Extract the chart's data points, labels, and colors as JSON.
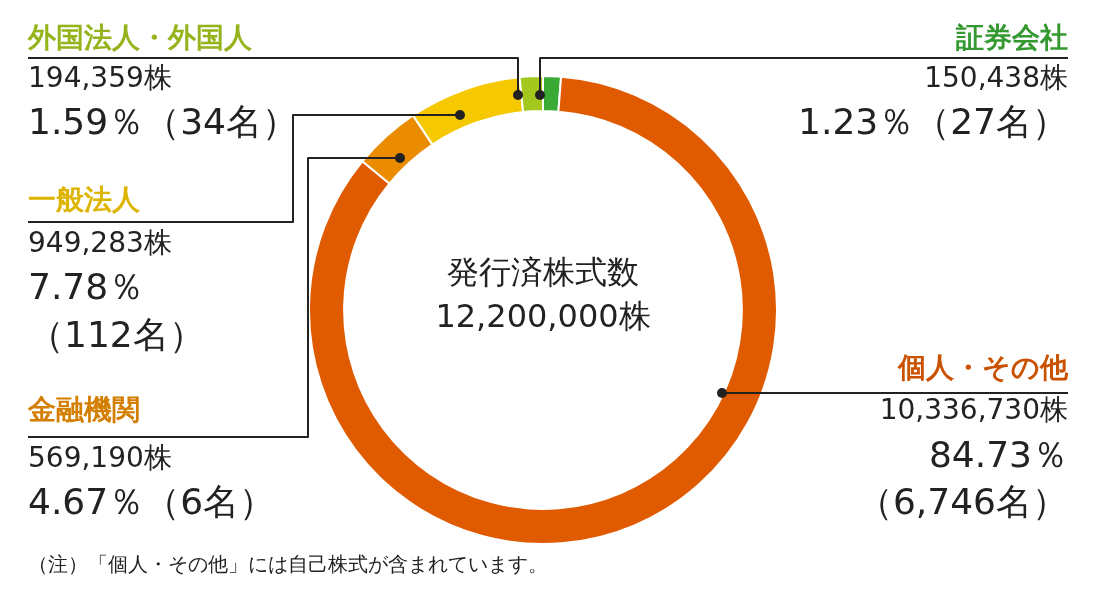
{
  "chart_data": {
    "type": "donut",
    "categories": [
      "証券会社",
      "個人・その他",
      "金融機関",
      "一般法人",
      "外国法人・外国人"
    ],
    "values": [
      150438,
      10336730,
      569190,
      949283,
      194359
    ],
    "colors": [
      "#3aaa35",
      "#e05a00",
      "#eb8c00",
      "#f5c800",
      "#a5c81e"
    ],
    "value_labels": [
      "150,438株\n1.23％（27名）",
      "10,336,730株\n84.73％（6,746名）",
      "569,190株\n4.67％（6名）",
      "949,283株\n7.78％（112名）",
      "194,359株\n1.59％（34名）"
    ],
    "annotations": [
      "発行済株式数\n12,200,000株",
      "（注）「個人・その他」には自己株式が含まれています。"
    ],
    "legend": false
  }
}
